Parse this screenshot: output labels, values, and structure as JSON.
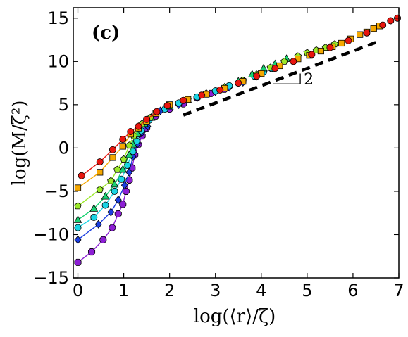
{
  "chart_data": {
    "type": "scatter",
    "panel_label": "(c)",
    "xlabel": "log(⟨r⟩/ζ)",
    "ylabel": "log(M/ζ²)",
    "xlim": [
      -0.1,
      7.0
    ],
    "ylim": [
      -15,
      16.2
    ],
    "xticks": [
      0,
      1,
      2,
      3,
      4,
      5,
      6,
      7
    ],
    "yticks": [
      -15,
      -10,
      -5,
      0,
      5,
      10,
      15
    ],
    "grid": false,
    "slope_line": {
      "points": [
        [
          2.3,
          3.8
        ],
        [
          6.5,
          12.2
        ]
      ],
      "style": "dashed",
      "label": "2",
      "triangle": [
        [
          4.25,
          7.4
        ],
        [
          4.85,
          7.4
        ],
        [
          4.85,
          8.6
        ]
      ]
    },
    "series": [
      {
        "marker": "circle",
        "color": "#e8150e",
        "connected": [
          [
            0.08,
            -3.2
          ],
          [
            0.48,
            -1.6
          ],
          [
            0.76,
            -0.2
          ],
          [
            0.98,
            1.0
          ],
          [
            1.15,
            1.9
          ],
          [
            1.32,
            2.5
          ],
          [
            1.5,
            3.3
          ],
          [
            1.72,
            4.2
          ]
        ],
        "scatter": [
          [
            1.95,
            4.9
          ],
          [
            2.3,
            5.5
          ],
          [
            2.7,
            6.1
          ],
          [
            3.1,
            6.7
          ],
          [
            3.5,
            7.5
          ],
          [
            3.9,
            8.3
          ],
          [
            4.3,
            9.2
          ],
          [
            4.7,
            10.0
          ],
          [
            5.1,
            10.8
          ],
          [
            5.5,
            11.6
          ],
          [
            5.9,
            12.4
          ],
          [
            6.3,
            13.3
          ],
          [
            6.65,
            14.2
          ],
          [
            6.82,
            14.7
          ],
          [
            6.97,
            15.0
          ]
        ]
      },
      {
        "marker": "square",
        "color": "#f5a800",
        "connected": [
          [
            0.0,
            -4.6
          ],
          [
            0.48,
            -2.8
          ],
          [
            0.76,
            -1.1
          ],
          [
            0.98,
            0.2
          ],
          [
            1.15,
            1.6
          ],
          [
            1.32,
            2.3
          ],
          [
            1.5,
            3.1
          ],
          [
            1.7,
            4.0
          ]
        ],
        "scatter": [
          [
            2.0,
            5.0
          ],
          [
            2.4,
            5.6
          ],
          [
            2.8,
            6.2
          ],
          [
            3.2,
            6.9
          ],
          [
            3.6,
            7.7
          ],
          [
            4.0,
            8.6
          ],
          [
            4.4,
            9.5
          ],
          [
            4.8,
            10.3
          ],
          [
            5.05,
            10.7
          ],
          [
            5.3,
            11.2
          ],
          [
            5.55,
            11.7
          ],
          [
            5.75,
            12.1
          ],
          [
            5.95,
            12.6
          ],
          [
            6.15,
            13.1
          ],
          [
            6.3,
            13.4
          ],
          [
            6.45,
            13.8
          ],
          [
            6.58,
            14.1
          ]
        ]
      },
      {
        "marker": "pentagon",
        "color": "#9be82a",
        "connected": [
          [
            0.0,
            -6.7
          ],
          [
            0.48,
            -4.8
          ],
          [
            0.72,
            -3.8
          ],
          [
            0.86,
            -2.5
          ],
          [
            1.0,
            -1.3
          ],
          [
            1.12,
            0.3
          ],
          [
            1.22,
            1.4
          ],
          [
            1.4,
            2.8
          ],
          [
            1.58,
            3.5
          ]
        ],
        "scatter": [
          [
            2.0,
            4.9
          ],
          [
            2.4,
            5.6
          ],
          [
            2.8,
            6.3
          ],
          [
            3.2,
            7.0
          ],
          [
            3.6,
            7.8
          ],
          [
            3.9,
            8.5
          ],
          [
            4.2,
            9.3
          ],
          [
            4.5,
            10.0
          ],
          [
            4.8,
            10.6
          ],
          [
            5.0,
            11.0
          ],
          [
            5.2,
            11.3
          ],
          [
            5.4,
            11.6
          ],
          [
            5.6,
            12.0
          ]
        ]
      },
      {
        "marker": "triangle",
        "color": "#19d272",
        "connected": [
          [
            0.0,
            -8.3
          ],
          [
            0.35,
            -7.0
          ],
          [
            0.6,
            -5.6
          ],
          [
            0.8,
            -4.2
          ],
          [
            0.98,
            -2.5
          ],
          [
            1.12,
            -0.8
          ],
          [
            1.2,
            0.4
          ],
          [
            1.3,
            1.6
          ],
          [
            1.45,
            2.8
          ],
          [
            1.6,
            3.5
          ]
        ],
        "scatter": [
          [
            2.0,
            4.8
          ],
          [
            2.4,
            5.5
          ],
          [
            2.8,
            6.3
          ],
          [
            3.2,
            7.0
          ],
          [
            3.5,
            7.7
          ],
          [
            3.8,
            8.5
          ],
          [
            4.05,
            9.2
          ],
          [
            4.3,
            9.7
          ],
          [
            4.55,
            10.3
          ]
        ]
      },
      {
        "marker": "circle",
        "color": "#1ad4e4",
        "connected": [
          [
            0.0,
            -9.2
          ],
          [
            0.35,
            -8.0
          ],
          [
            0.6,
            -6.6
          ],
          [
            0.8,
            -5.0
          ],
          [
            0.95,
            -3.6
          ],
          [
            1.08,
            -2.0
          ],
          [
            1.2,
            -0.4
          ],
          [
            1.28,
            0.8
          ],
          [
            1.38,
            2.0
          ],
          [
            1.55,
            3.2
          ]
        ],
        "scatter": [
          [
            1.9,
            4.5
          ],
          [
            2.2,
            5.2
          ],
          [
            2.6,
            5.9
          ],
          [
            3.0,
            6.6
          ],
          [
            3.3,
            7.2
          ],
          [
            3.6,
            7.8
          ],
          [
            3.85,
            8.3
          ],
          [
            4.05,
            8.8
          ],
          [
            4.22,
            9.2
          ]
        ]
      },
      {
        "marker": "diamond",
        "color": "#1a3de0",
        "connected": [
          [
            0.0,
            -10.6
          ],
          [
            0.45,
            -8.8
          ],
          [
            0.72,
            -7.4
          ],
          [
            0.88,
            -6.0
          ],
          [
            1.02,
            -4.3
          ],
          [
            1.12,
            -2.8
          ],
          [
            1.2,
            -1.0
          ],
          [
            1.3,
            0.5
          ],
          [
            1.4,
            1.8
          ],
          [
            1.52,
            2.5
          ]
        ],
        "scatter": [
          [
            1.8,
            4.3
          ],
          [
            2.2,
            5.0
          ],
          [
            2.6,
            5.8
          ],
          [
            3.0,
            6.5
          ],
          [
            3.3,
            7.0
          ],
          [
            3.6,
            7.6
          ],
          [
            3.9,
            8.3
          ]
        ]
      },
      {
        "marker": "octagon",
        "color": "#8c1fd4",
        "connected": [
          [
            0.0,
            -13.2
          ],
          [
            0.3,
            -12.0
          ],
          [
            0.55,
            -10.6
          ],
          [
            0.75,
            -9.2
          ],
          [
            0.88,
            -7.6
          ],
          [
            0.98,
            -6.5
          ],
          [
            1.05,
            -5.0
          ],
          [
            1.12,
            -3.7
          ],
          [
            1.18,
            -2.3
          ],
          [
            1.24,
            -0.8
          ],
          [
            1.32,
            0.4
          ],
          [
            1.4,
            1.4
          ],
          [
            1.5,
            2.3
          ]
        ],
        "scatter": [
          [
            1.7,
            3.7
          ],
          [
            2.0,
            4.5
          ],
          [
            2.3,
            5.1
          ],
          [
            2.6,
            5.8
          ],
          [
            2.9,
            6.3
          ],
          [
            3.2,
            6.8
          ]
        ]
      }
    ]
  }
}
